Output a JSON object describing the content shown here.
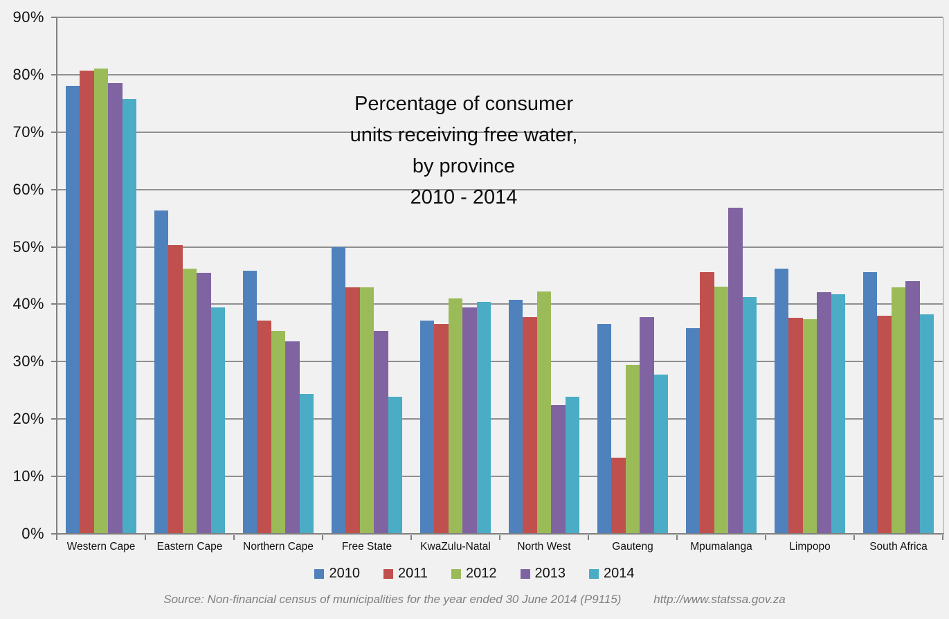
{
  "chart_data": {
    "type": "bar",
    "title_lines": [
      "Percentage of consumer",
      "units receiving free water,",
      "by province",
      "2010 - 2014"
    ],
    "categories": [
      "Western Cape",
      "Eastern Cape",
      "Northern Cape",
      "Free State",
      "KwaZulu-Natal",
      "North West",
      "Gauteng",
      "Mpumalanga",
      "Limpopo",
      "South Africa"
    ],
    "series": [
      {
        "name": "2010",
        "color": "#4F81BD",
        "values": [
          78.0,
          56.4,
          45.9,
          50.0,
          37.1,
          40.8,
          36.5,
          35.8,
          46.2,
          45.6
        ]
      },
      {
        "name": "2011",
        "color": "#C0504D",
        "values": [
          80.7,
          50.3,
          37.2,
          42.9,
          36.5,
          37.8,
          13.3,
          45.6,
          37.7,
          38.0
        ]
      },
      {
        "name": "2012",
        "color": "#9BBB59",
        "values": [
          81.1,
          46.2,
          35.3,
          43.0,
          41.0,
          42.2,
          29.4,
          43.1,
          37.4,
          42.9
        ]
      },
      {
        "name": "2013",
        "color": "#8064A2",
        "values": [
          78.6,
          45.5,
          33.5,
          35.3,
          39.4,
          22.5,
          37.8,
          56.8,
          42.1,
          44.0
        ]
      },
      {
        "name": "2014",
        "color": "#4BACC6",
        "values": [
          75.8,
          39.5,
          24.4,
          23.9,
          40.4,
          23.9,
          27.7,
          41.3,
          41.7,
          38.2
        ]
      }
    ],
    "ylim": [
      0,
      90
    ],
    "ytick_step": 10,
    "ytick_labels": [
      "0%",
      "10%",
      "20%",
      "30%",
      "40%",
      "50%",
      "60%",
      "70%",
      "80%",
      "90%"
    ],
    "xlabel": "",
    "ylabel": "",
    "grid": true,
    "legend_position": "bottom"
  },
  "footer": {
    "source": "Source: Non-financial census of municipalities for the year ended 30 June 2014 (P9115)",
    "url": "http://www.statssa.gov.za"
  },
  "colors": {
    "background": "#F1F1F1",
    "gridline": "#8F8F8F",
    "axis": "#7F7F7F",
    "plot_border": "#C6C6C6",
    "text": "#111111",
    "source_text": "#7F7F7F"
  }
}
